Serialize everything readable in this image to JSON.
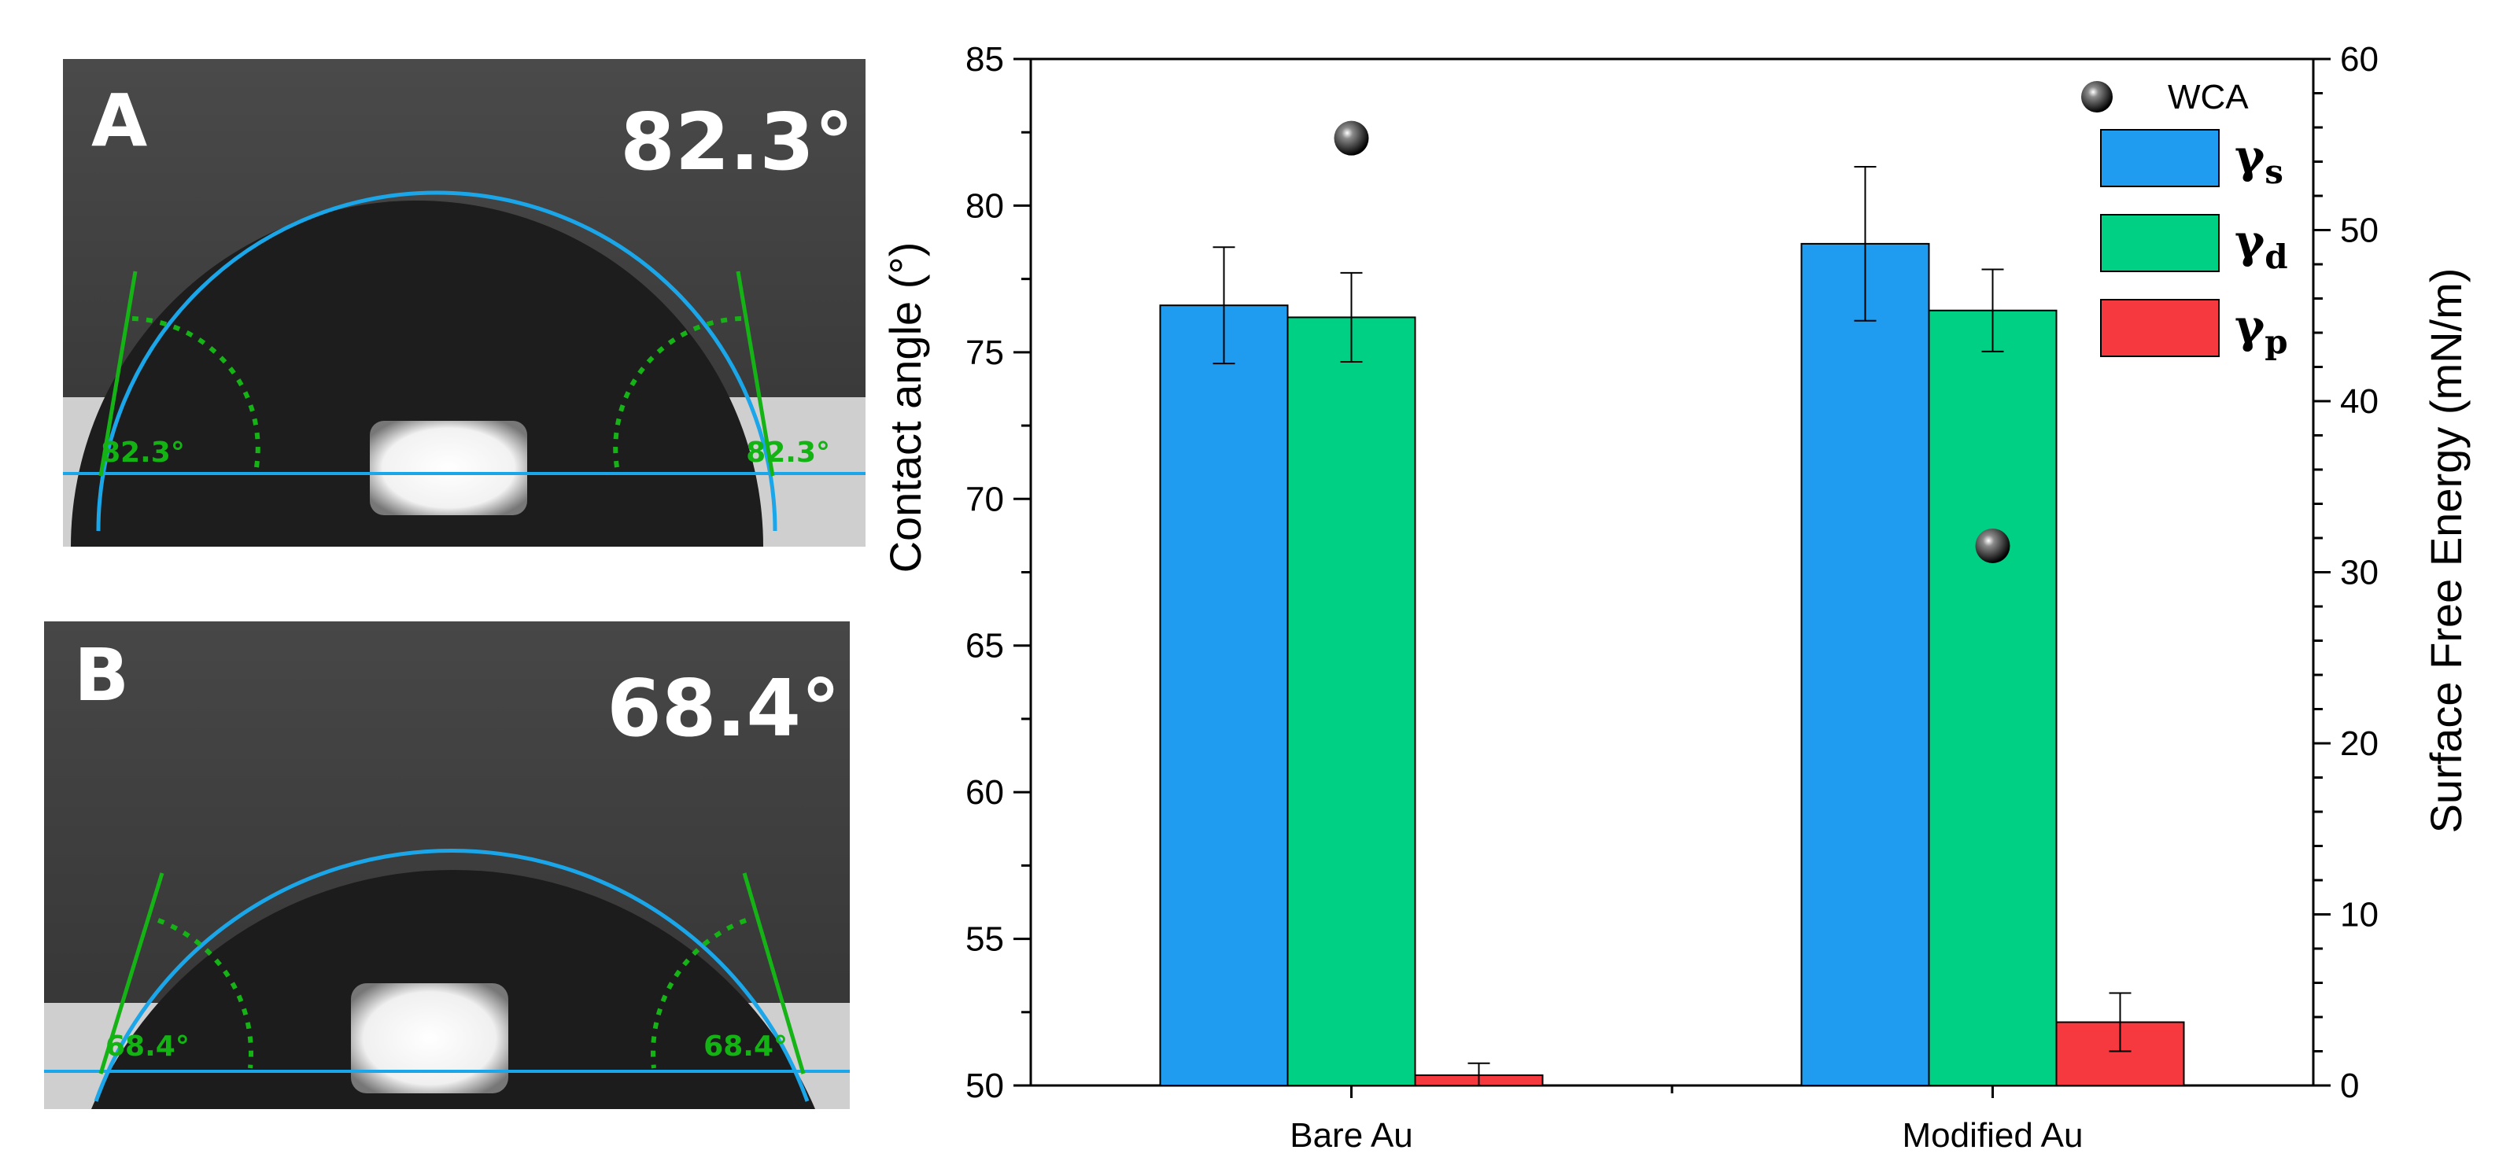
{
  "panels": {
    "A": {
      "letter": "A",
      "angle": "82.3°",
      "left_label": "82.3°",
      "right_label": "82.3°"
    },
    "B": {
      "letter": "B",
      "angle": "68.4°",
      "left_label": "68.4°",
      "right_label": "68.4°"
    }
  },
  "chart_data": {
    "type": "bar",
    "categories": [
      "Bare Au",
      "Modified Au"
    ],
    "ylabel_left": "Contact angle (°)",
    "ylabel_right": "Surface Free Energy (mN/m)",
    "left_axis": {
      "min": 50,
      "max": 85,
      "ticks": [
        "50",
        "55",
        "60",
        "65",
        "70",
        "75",
        "80",
        "85"
      ]
    },
    "right_axis": {
      "min": 0,
      "max": 60,
      "ticks": [
        "0",
        "10",
        "20",
        "30",
        "40",
        "50",
        "60"
      ]
    },
    "bar_series": [
      {
        "name": "γs",
        "symbol": "γ",
        "subscript": "s",
        "color": "#1f9cf0",
        "values": [
          45.6,
          49.2
        ],
        "errors": [
          3.4,
          4.5
        ]
      },
      {
        "name": "γd",
        "symbol": "γ",
        "subscript": "d",
        "color": "#00d084",
        "values": [
          44.9,
          45.3
        ],
        "errors": [
          2.6,
          2.4
        ]
      },
      {
        "name": "γp",
        "symbol": "γ",
        "subscript": "p",
        "color": "#f5393f",
        "values": [
          0.6,
          3.7
        ],
        "errors": [
          0.7,
          1.7
        ]
      }
    ],
    "scatter_series": {
      "name": "WCA",
      "axis": "left",
      "values": [
        82.3,
        68.4
      ],
      "errors": [
        0.4,
        0.45
      ]
    }
  }
}
